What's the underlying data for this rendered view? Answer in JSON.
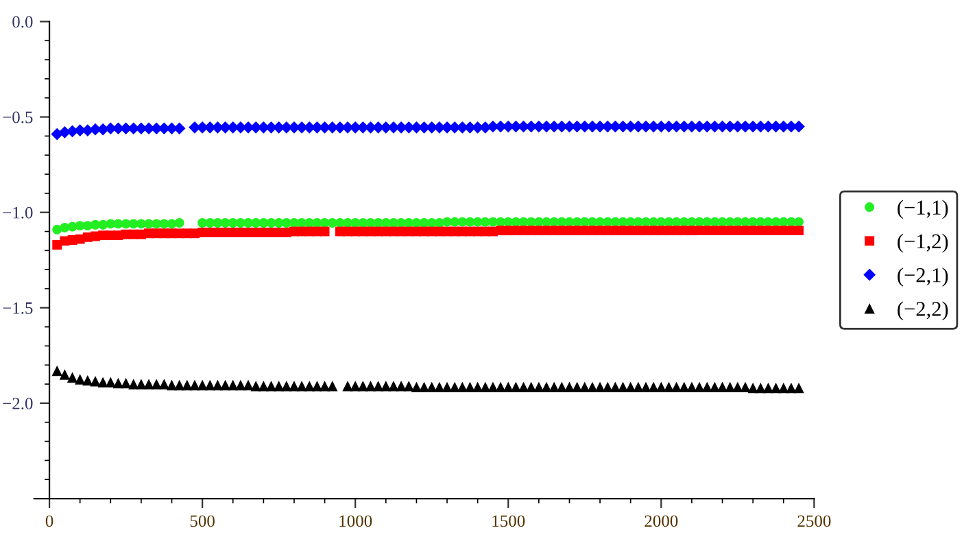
{
  "chart_data": {
    "type": "scatter",
    "x": [
      25,
      50,
      75,
      100,
      125,
      150,
      175,
      200,
      225,
      250,
      275,
      300,
      325,
      350,
      375,
      400,
      425,
      450,
      475,
      500,
      525,
      550,
      575,
      600,
      625,
      650,
      675,
      700,
      725,
      750,
      775,
      800,
      825,
      850,
      875,
      900,
      925,
      950,
      975,
      1000,
      1025,
      1050,
      1075,
      1100,
      1125,
      1150,
      1175,
      1200,
      1225,
      1250,
      1275,
      1300,
      1325,
      1350,
      1375,
      1400,
      1425,
      1450,
      1475,
      1500,
      1525,
      1550,
      1575,
      1600,
      1625,
      1650,
      1675,
      1700,
      1725,
      1750,
      1775,
      1800,
      1825,
      1850,
      1875,
      1900,
      1925,
      1950,
      1975,
      2000,
      2025,
      2050,
      2075,
      2100,
      2125,
      2150,
      2175,
      2200,
      2225,
      2250,
      2275,
      2300,
      2325,
      2350,
      2375,
      2400,
      2425,
      2450
    ],
    "series": [
      {
        "name": "(−1,1)",
        "color": "#22ee22",
        "marker": "circle",
        "values": [
          -1.09,
          -1.08,
          -1.075,
          -1.07,
          -1.07,
          -1.065,
          -1.065,
          -1.06,
          -1.06,
          -1.06,
          -1.06,
          -1.06,
          -1.06,
          -1.06,
          -1.06,
          -1.06,
          -1.055,
          null,
          null,
          -1.055,
          -1.055,
          -1.055,
          -1.055,
          -1.055,
          -1.055,
          -1.055,
          -1.055,
          -1.055,
          -1.055,
          -1.055,
          -1.055,
          -1.055,
          -1.055,
          -1.055,
          -1.055,
          -1.055,
          -1.055,
          -1.055,
          -1.055,
          -1.055,
          -1.055,
          -1.055,
          -1.055,
          -1.055,
          -1.055,
          -1.055,
          -1.055,
          -1.055,
          -1.055,
          -1.055,
          -1.055,
          -1.05,
          -1.05,
          -1.05,
          -1.05,
          -1.05,
          -1.05,
          -1.05,
          -1.05,
          -1.05,
          -1.05,
          -1.05,
          -1.05,
          -1.05,
          -1.05,
          -1.05,
          -1.05,
          -1.05,
          -1.05,
          -1.05,
          -1.05,
          -1.05,
          -1.05,
          -1.05,
          -1.05,
          -1.05,
          -1.05,
          -1.05,
          -1.05,
          -1.05,
          -1.05,
          -1.05,
          -1.05,
          -1.05,
          -1.05,
          -1.05,
          -1.05,
          -1.05,
          -1.05,
          -1.05,
          -1.05,
          -1.05,
          -1.05,
          -1.05,
          -1.05,
          -1.05,
          -1.05,
          -1.05
        ]
      },
      {
        "name": "(−1,2)",
        "color": "#ff0000",
        "marker": "square",
        "values": [
          -1.17,
          -1.15,
          -1.145,
          -1.14,
          -1.13,
          -1.125,
          -1.12,
          -1.12,
          -1.12,
          -1.115,
          -1.115,
          -1.115,
          -1.11,
          -1.11,
          -1.11,
          -1.11,
          -1.11,
          -1.11,
          -1.11,
          -1.105,
          -1.105,
          -1.105,
          -1.105,
          -1.105,
          -1.105,
          -1.105,
          -1.105,
          -1.105,
          -1.105,
          -1.105,
          -1.105,
          -1.1,
          -1.1,
          -1.1,
          -1.1,
          -1.1,
          null,
          -1.1,
          -1.1,
          -1.1,
          -1.1,
          -1.1,
          -1.1,
          -1.1,
          -1.1,
          -1.1,
          -1.1,
          -1.1,
          -1.1,
          -1.1,
          -1.1,
          -1.1,
          -1.1,
          -1.1,
          -1.1,
          -1.1,
          -1.1,
          -1.1,
          -1.095,
          -1.095,
          -1.095,
          -1.095,
          -1.095,
          -1.095,
          -1.095,
          -1.095,
          -1.095,
          -1.095,
          -1.095,
          -1.095,
          -1.095,
          -1.095,
          -1.095,
          -1.095,
          -1.095,
          -1.095,
          -1.095,
          -1.095,
          -1.095,
          -1.095,
          -1.095,
          -1.095,
          -1.095,
          -1.095,
          -1.095,
          -1.095,
          -1.095,
          -1.095,
          -1.095,
          -1.095,
          -1.095,
          -1.095,
          -1.095,
          -1.095,
          -1.095,
          -1.095,
          -1.095,
          -1.095
        ]
      },
      {
        "name": "(−2,1)",
        "color": "#0000ff",
        "marker": "diamond",
        "values": [
          -0.59,
          -0.58,
          -0.575,
          -0.57,
          -0.57,
          -0.565,
          -0.565,
          -0.56,
          -0.56,
          -0.56,
          -0.56,
          -0.56,
          -0.56,
          -0.56,
          -0.56,
          -0.56,
          -0.56,
          null,
          -0.555,
          -0.555,
          -0.555,
          -0.555,
          -0.555,
          -0.555,
          -0.555,
          -0.555,
          -0.555,
          -0.555,
          -0.555,
          -0.555,
          -0.555,
          -0.555,
          -0.555,
          -0.555,
          -0.555,
          -0.555,
          -0.555,
          -0.555,
          -0.555,
          -0.555,
          -0.555,
          -0.555,
          -0.555,
          -0.555,
          -0.555,
          -0.555,
          -0.555,
          -0.555,
          -0.555,
          -0.555,
          -0.555,
          -0.555,
          -0.555,
          -0.555,
          -0.555,
          -0.555,
          -0.555,
          -0.55,
          -0.55,
          -0.55,
          -0.55,
          -0.55,
          -0.55,
          -0.55,
          -0.55,
          -0.55,
          -0.55,
          -0.55,
          -0.55,
          -0.55,
          -0.55,
          -0.55,
          -0.55,
          -0.55,
          -0.55,
          -0.55,
          -0.55,
          -0.55,
          -0.55,
          -0.55,
          -0.55,
          -0.55,
          -0.55,
          -0.55,
          -0.55,
          -0.55,
          -0.55,
          -0.55,
          -0.55,
          -0.55,
          -0.55,
          -0.55,
          -0.55,
          -0.55,
          -0.55,
          -0.55,
          -0.55,
          -0.55
        ]
      },
      {
        "name": "(−2,2)",
        "color": "#000000",
        "marker": "triangle",
        "values": [
          -1.83,
          -1.85,
          -1.865,
          -1.875,
          -1.88,
          -1.885,
          -1.89,
          -1.89,
          -1.895,
          -1.895,
          -1.9,
          -1.9,
          -1.9,
          -1.9,
          -1.9,
          -1.905,
          -1.905,
          -1.905,
          -1.905,
          -1.905,
          -1.905,
          -1.905,
          -1.905,
          -1.905,
          -1.905,
          -1.905,
          -1.91,
          -1.91,
          -1.91,
          -1.91,
          -1.91,
          -1.91,
          -1.91,
          -1.91,
          -1.91,
          -1.91,
          -1.91,
          null,
          -1.91,
          -1.91,
          -1.91,
          -1.91,
          -1.91,
          -1.91,
          -1.91,
          -1.91,
          -1.91,
          -1.915,
          -1.915,
          -1.915,
          -1.915,
          -1.915,
          -1.915,
          -1.915,
          -1.915,
          -1.915,
          -1.915,
          -1.915,
          -1.915,
          -1.915,
          -1.915,
          -1.915,
          -1.915,
          -1.915,
          -1.915,
          -1.915,
          -1.915,
          -1.915,
          -1.915,
          -1.915,
          -1.915,
          -1.915,
          -1.915,
          -1.915,
          -1.915,
          -1.915,
          -1.915,
          -1.915,
          -1.915,
          -1.915,
          -1.915,
          -1.915,
          -1.915,
          -1.915,
          -1.915,
          -1.915,
          -1.915,
          -1.915,
          -1.915,
          -1.915,
          -1.915,
          -1.92,
          -1.92,
          -1.92,
          -1.92,
          -1.92,
          -1.92,
          -1.92
        ]
      }
    ],
    "xlim": [
      -50,
      2500
    ],
    "ylim": [
      -2.5,
      0
    ],
    "xticks": [
      0,
      {
        "value": 100,
        "label": null
      },
      {
        "value": 200,
        "label": null
      },
      {
        "value": 300,
        "label": null
      },
      {
        "value": 400,
        "label": null
      },
      500,
      {
        "value": 600,
        "label": null
      },
      {
        "value": 700,
        "label": null
      },
      {
        "value": 800,
        "label": null
      },
      {
        "value": 900,
        "label": null
      },
      1000,
      {
        "value": 1100,
        "label": null
      },
      {
        "value": 1200,
        "label": null
      },
      {
        "value": 1300,
        "label": null
      },
      {
        "value": 1400,
        "label": null
      },
      1500,
      {
        "value": 1600,
        "label": null
      },
      {
        "value": 1700,
        "label": null
      },
      {
        "value": 1800,
        "label": null
      },
      {
        "value": 1900,
        "label": null
      },
      2000,
      {
        "value": 2100,
        "label": null
      },
      {
        "value": 2200,
        "label": null
      },
      {
        "value": 2300,
        "label": null
      },
      {
        "value": 2400,
        "label": null
      },
      2500
    ],
    "yticks": [
      {
        "value": 0,
        "label": "0.0"
      },
      {
        "value": -0.1,
        "label": null
      },
      {
        "value": -0.2,
        "label": null
      },
      {
        "value": -0.3,
        "label": null
      },
      {
        "value": -0.4,
        "label": null
      },
      {
        "value": -0.5,
        "label": "−0.5"
      },
      {
        "value": -0.6,
        "label": null
      },
      {
        "value": -0.7,
        "label": null
      },
      {
        "value": -0.8,
        "label": null
      },
      {
        "value": -0.9,
        "label": null
      },
      {
        "value": -1.0,
        "label": "−1.0"
      },
      {
        "value": -1.1,
        "label": null
      },
      {
        "value": -1.2,
        "label": null
      },
      {
        "value": -1.3,
        "label": null
      },
      {
        "value": -1.4,
        "label": null
      },
      {
        "value": -1.5,
        "label": "−1.5"
      },
      {
        "value": -1.6,
        "label": null
      },
      {
        "value": -1.7,
        "label": null
      },
      {
        "value": -1.8,
        "label": null
      },
      {
        "value": -1.9,
        "label": null
      },
      {
        "value": -2.0,
        "label": "−2.0"
      },
      {
        "value": -2.1,
        "label": null
      },
      {
        "value": -2.2,
        "label": null
      },
      {
        "value": -2.3,
        "label": null
      },
      {
        "value": -2.4,
        "label": null
      }
    ],
    "grid": false,
    "legend": "right"
  }
}
